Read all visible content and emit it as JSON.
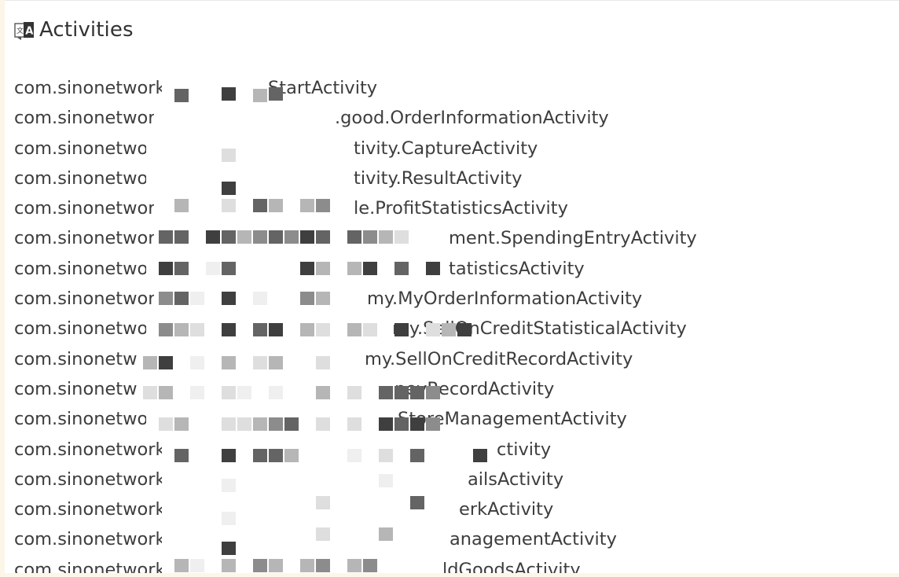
{
  "header": {
    "title": "Activities",
    "icon": "translate-icon"
  },
  "activities": [
    {
      "prefix": "com.sinonetwork",
      "suffix": "StartActivity"
    },
    {
      "prefix": "com.sinonetwor",
      "suffix": ".good.OrderInformationActivity"
    },
    {
      "prefix": "com.sinonetwo",
      "suffix": "tivity.CaptureActivity"
    },
    {
      "prefix": "com.sinonetwo",
      "suffix": "tivity.ResultActivity"
    },
    {
      "prefix": "com.sinonetwor",
      "suffix": "le.ProfitStatisticsActivity"
    },
    {
      "prefix": "com.sinonetwor",
      "suffix": "ment.SpendingEntryActivity"
    },
    {
      "prefix": "com.sinonetwo",
      "suffix": "tatisticsActivity"
    },
    {
      "prefix": "com.sinonetwor",
      "suffix": "my.MyOrderInformationActivity"
    },
    {
      "prefix": "com.sinonetwo",
      "suffix": "my.SellOnCreditStatisticalActivity"
    },
    {
      "prefix": "com.sinonetw",
      "suffix": "my.SellOnCreditRecordActivity"
    },
    {
      "prefix": "com.sinonetw",
      "suffix": "neyRecordActivity"
    },
    {
      "prefix": "com.sinonetwo",
      "suffix": "StoreManagementActivity"
    },
    {
      "prefix": "com.sinonetwork",
      "suffix": "ctivity"
    },
    {
      "prefix": "com.sinonetwork",
      "suffix": "ailsActivity"
    },
    {
      "prefix": "com.sinonetwork",
      "suffix": "erkActivity"
    },
    {
      "prefix": "com.sinonetwork",
      "suffix": "anagementActivity"
    },
    {
      "prefix": "com.sinonetwork",
      "suffix": "ldGoodsActivity"
    }
  ]
}
